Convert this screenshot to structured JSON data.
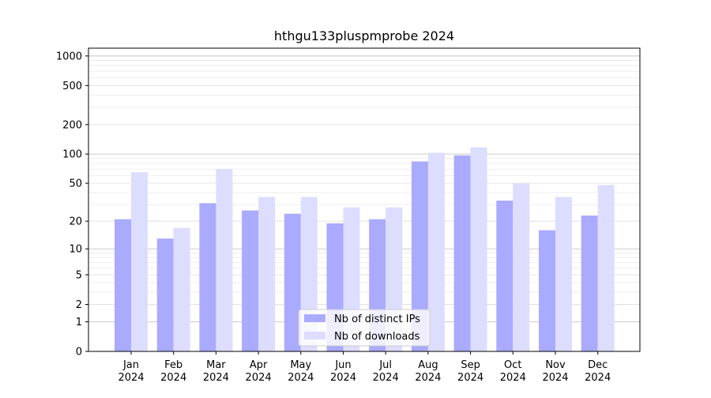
{
  "chart_data": {
    "type": "bar",
    "title": "hthgu133pluspmprobe 2024",
    "xlabel": "",
    "ylabel": "",
    "scale": "log(1+y)",
    "ylim": [
      0,
      1200
    ],
    "grid": true,
    "legend_position": "bottom-center",
    "categories": [
      "Jan\n2024",
      "Feb\n2024",
      "Mar\n2024",
      "Apr\n2024",
      "May\n2024",
      "Jun\n2024",
      "Jul\n2024",
      "Aug\n2024",
      "Sep\n2024",
      "Oct\n2024",
      "Nov\n2024",
      "Dec\n2024"
    ],
    "y_ticks": [
      0,
      1,
      2,
      5,
      10,
      20,
      50,
      100,
      200,
      500,
      1000
    ],
    "series": [
      {
        "name": "Nb of distinct IPs",
        "color": "#aaaaff",
        "values": [
          21,
          13,
          31,
          26,
          24,
          19,
          21,
          84,
          97,
          33,
          16,
          23
        ]
      },
      {
        "name": "Nb of downloads",
        "color": "#ddddff",
        "values": [
          65,
          17,
          70,
          36,
          36,
          28,
          28,
          103,
          117,
          50,
          36,
          48
        ]
      }
    ]
  }
}
